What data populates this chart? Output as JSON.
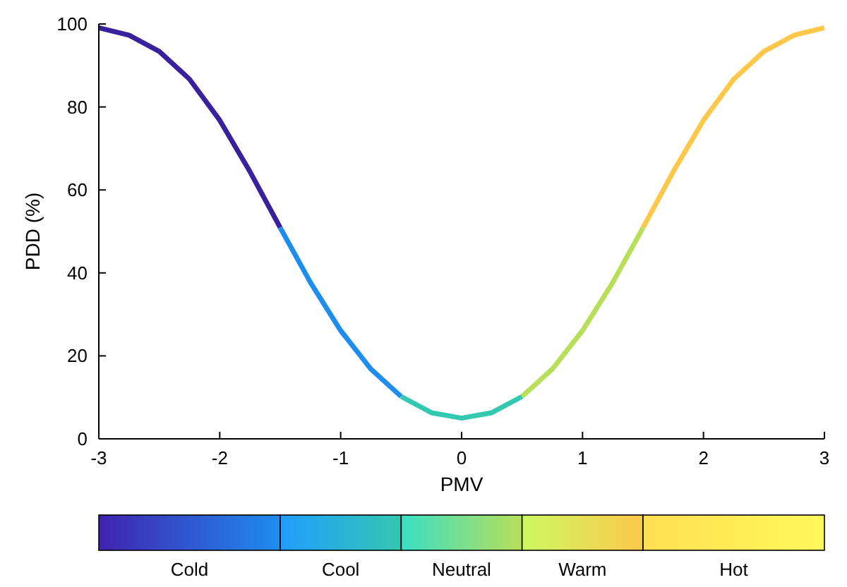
{
  "chart_data": {
    "type": "line",
    "xlabel": "PMV",
    "ylabel": "PDD (%)",
    "xlim": [
      -3,
      3
    ],
    "ylim": [
      0,
      100
    ],
    "xticks": [
      -3,
      -2,
      -1,
      0,
      1,
      2,
      3
    ],
    "yticks": [
      0,
      20,
      40,
      60,
      80,
      100
    ],
    "grid": false,
    "marker": "none",
    "line_style": "solid",
    "series": [
      {
        "color": "#3a1f9e",
        "x": [
          -3,
          -2.75,
          -2.5,
          -2.25,
          -2,
          -1.75,
          -1.5
        ],
        "values": [
          99.1,
          97.3,
          93.4,
          86.7,
          76.8,
          64.4,
          50.9
        ]
      },
      {
        "color": "#1e8df0",
        "x": [
          -1.5,
          -1.25,
          -1,
          -0.75,
          -0.5
        ],
        "values": [
          50.9,
          37.7,
          26.1,
          16.8,
          10.2
        ]
      },
      {
        "color": "#33c8b0",
        "x": [
          -0.5,
          -0.25,
          0,
          0.25,
          0.5
        ],
        "values": [
          10.2,
          6.3,
          5,
          6.3,
          10.2
        ]
      },
      {
        "color": "#b8df58",
        "x": [
          0.5,
          0.75,
          1,
          1.25,
          1.5
        ],
        "values": [
          10.2,
          16.8,
          26.1,
          37.7,
          50.9
        ]
      },
      {
        "color": "#fdc84a",
        "x": [
          1.5,
          1.75,
          2,
          2.25,
          2.5,
          2.75,
          3
        ],
        "values": [
          50.9,
          64.4,
          76.8,
          86.7,
          93.4,
          97.3,
          99.1
        ]
      }
    ],
    "annotations": [
      "Cold",
      "Cool",
      "Neutral",
      "Warm",
      "Hot"
    ]
  }
}
